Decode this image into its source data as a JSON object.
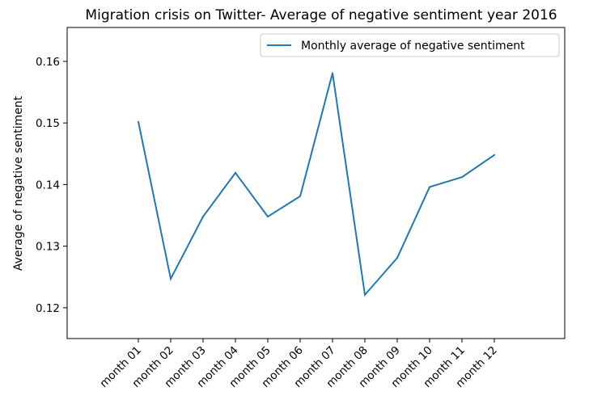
{
  "chart_data": {
    "type": "line",
    "title": "Migration crisis on Twitter- Average of negative sentiment year 2016",
    "xlabel": "",
    "ylabel": "Average of negative sentiment",
    "categories": [
      "month 01",
      "month 02",
      "month 03",
      "month 04",
      "month 05",
      "month 06",
      "month 07",
      "month 08",
      "month 09",
      "month 10",
      "month 11",
      "month 12"
    ],
    "series": [
      {
        "name": "Monthly average of negative sentiment",
        "color": "#1f77b4",
        "values": [
          0.1502,
          0.1247,
          0.1348,
          0.1419,
          0.1348,
          0.1381,
          0.1581,
          0.1221,
          0.1281,
          0.1396,
          0.1412,
          0.1448
        ]
      }
    ],
    "ylim": [
      0.115,
      0.1655
    ],
    "yticks": [
      0.12,
      0.13,
      0.14,
      0.15,
      0.16
    ],
    "ytick_labels": [
      "0.12",
      "0.13",
      "0.14",
      "0.15",
      "0.16"
    ],
    "grid": false,
    "legend_position": "top-right"
  }
}
